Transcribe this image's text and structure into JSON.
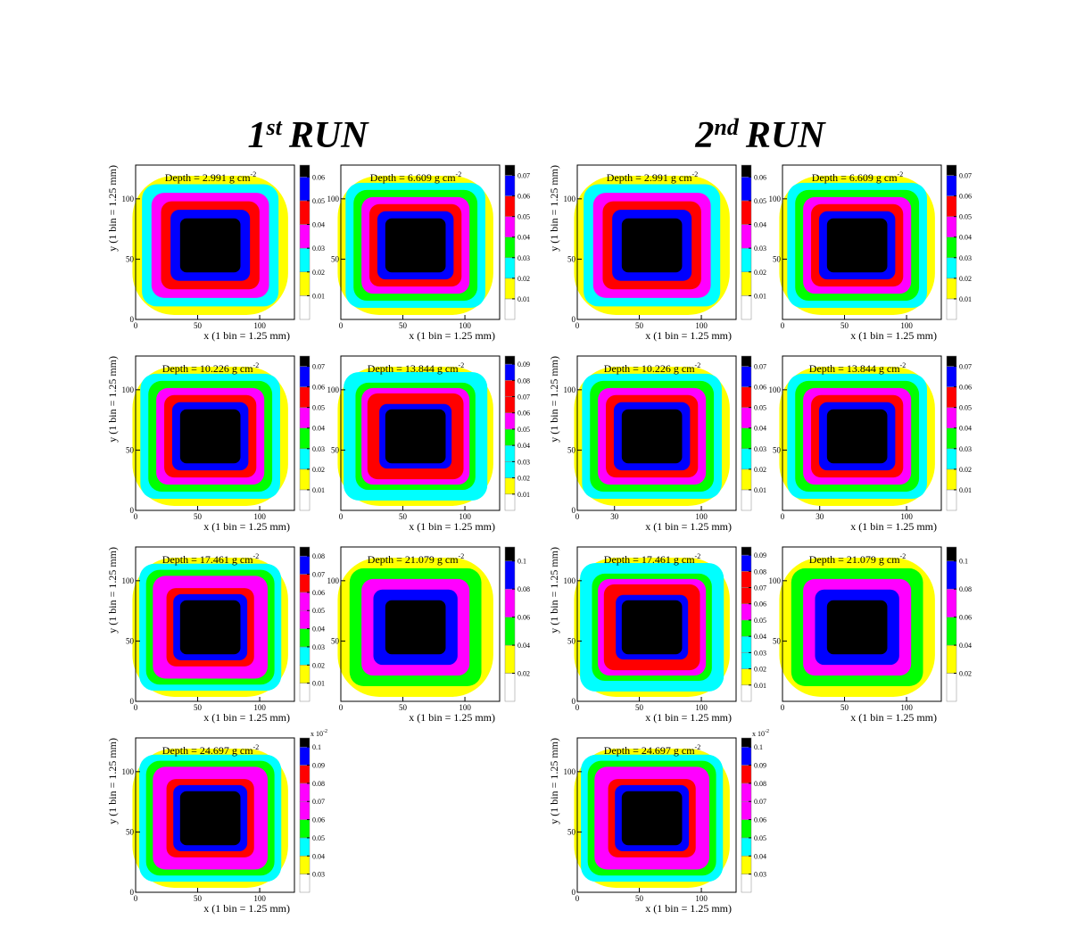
{
  "runs": [
    {
      "number": "1",
      "suffix": "st",
      "word": "RUN"
    },
    {
      "number": "2",
      "suffix": "nd",
      "word": "RUN"
    }
  ],
  "palette": [
    "#ffffff",
    "#ffff00",
    "#00ffff",
    "#00ff00",
    "#ff00ff",
    "#ff0000",
    "#0000ff",
    "#000000"
  ],
  "chart_data": [
    {
      "type": "contour",
      "annotation": "Depth = 2.991 g cm",
      "annotation_sup": "-2",
      "x_label": "x (1 bin = 1.25 mm)",
      "y_label": "y (1 bin = 1.25 mm)",
      "xlim": [
        0,
        128
      ],
      "ylim": [
        0,
        128
      ],
      "xticks": [
        0,
        50,
        100
      ],
      "yticks": [
        0,
        50,
        100
      ],
      "zlim": [
        0,
        0.065
      ],
      "zticks": [
        0.01,
        0.02,
        0.03,
        0.04,
        0.05,
        0.06
      ]
    },
    {
      "type": "contour",
      "annotation": "Depth = 6.609 g cm",
      "annotation_sup": "-2",
      "x_label": "x (1 bin = 1.25 mm)",
      "xlim": [
        0,
        128
      ],
      "ylim": [
        0,
        128
      ],
      "xticks": [
        0,
        50,
        100
      ],
      "yticks": [
        50,
        100
      ],
      "zlim": [
        0,
        0.075
      ],
      "zticks": [
        0.01,
        0.02,
        0.03,
        0.04,
        0.05,
        0.06,
        0.07
      ]
    },
    {
      "type": "contour",
      "annotation": "Depth = 10.226 g cm",
      "annotation_sup": "-2",
      "x_label": "x (1 bin = 1.25 mm)",
      "y_label": "y (1 bin = 1.25 mm)",
      "xlim": [
        0,
        128
      ],
      "ylim": [
        0,
        128
      ],
      "xticks": [
        0,
        50,
        100
      ],
      "yticks": [
        0,
        50,
        100
      ],
      "zlim": [
        0,
        0.075
      ],
      "zticks": [
        0.01,
        0.02,
        0.03,
        0.04,
        0.05,
        0.06,
        0.07
      ]
    },
    {
      "type": "contour",
      "annotation": "Depth = 13.844 g cm",
      "annotation_sup": "-2",
      "x_label": "x (1 bin = 1.25 mm)",
      "xlim": [
        0,
        128
      ],
      "ylim": [
        0,
        128
      ],
      "xticks": [
        0,
        50,
        100
      ],
      "yticks": [
        50,
        100
      ],
      "zlim": [
        0,
        0.095
      ],
      "zticks": [
        0.01,
        0.02,
        0.03,
        0.04,
        0.05,
        0.06,
        0.07,
        0.08,
        0.09
      ]
    },
    {
      "type": "contour",
      "annotation": "Depth = 17.461 g cm",
      "annotation_sup": "-2",
      "x_label": "x (1 bin = 1.25 mm)",
      "y_label": "y (1 bin = 1.25 mm)",
      "xlim": [
        0,
        128
      ],
      "ylim": [
        0,
        128
      ],
      "xticks": [
        0,
        50,
        100
      ],
      "yticks": [
        0,
        50,
        100
      ],
      "zlim": [
        0,
        0.085
      ],
      "zticks": [
        0.01,
        0.02,
        0.03,
        0.04,
        0.05,
        0.06,
        0.07,
        0.08
      ]
    },
    {
      "type": "contour",
      "annotation": "Depth = 21.079 g cm",
      "annotation_sup": "-2",
      "x_label": "x (1 bin = 1.25 mm)",
      "xlim": [
        0,
        128
      ],
      "ylim": [
        0,
        128
      ],
      "xticks": [
        0,
        50,
        100
      ],
      "yticks": [
        50,
        100
      ],
      "zlim": [
        0,
        0.11
      ],
      "zticks": [
        0.02,
        0.04,
        0.06,
        0.08,
        0.1
      ]
    },
    {
      "type": "contour",
      "annotation": "Depth = 24.697 g cm",
      "annotation_sup": "-2",
      "x_label": "x (1 bin = 1.25 mm)",
      "y_label": "y (1 bin = 1.25 mm)",
      "z_scale": "x 10",
      "z_scale_sup": "-2",
      "xlim": [
        0,
        128
      ],
      "ylim": [
        0,
        128
      ],
      "xticks": [
        0,
        50,
        100
      ],
      "yticks": [
        0,
        50,
        100
      ],
      "zlim": [
        0.02,
        0.105
      ],
      "zticks": [
        0.03,
        0.04,
        0.05,
        0.06,
        0.07,
        0.08,
        0.09,
        0.1
      ]
    },
    {
      "type": "contour",
      "annotation": "Depth = 2.991 g cm",
      "annotation_sup": "-2",
      "x_label": "x (1 bin = 1.25 mm)",
      "y_label": "y (1 bin = 1.25 mm)",
      "xlim": [
        0,
        128
      ],
      "ylim": [
        0,
        128
      ],
      "xticks": [
        0,
        50,
        100
      ],
      "yticks": [
        0,
        50,
        100
      ],
      "zlim": [
        0,
        0.065
      ],
      "zticks": [
        0.01,
        0.02,
        0.03,
        0.04,
        0.05,
        0.06
      ]
    },
    {
      "type": "contour",
      "annotation": "Depth = 6.609 g cm",
      "annotation_sup": "-2",
      "x_label": "x (1 bin = 1.25 mm)",
      "xlim": [
        0,
        128
      ],
      "ylim": [
        0,
        128
      ],
      "xticks": [
        0,
        50,
        100
      ],
      "yticks": [
        50,
        100
      ],
      "zlim": [
        0,
        0.075
      ],
      "zticks": [
        0.01,
        0.02,
        0.03,
        0.04,
        0.05,
        0.06,
        0.07
      ]
    },
    {
      "type": "contour",
      "annotation": "Depth = 10.226 g cm",
      "annotation_sup": "-2",
      "x_label": "x (1 bin = 1.25 mm)",
      "y_label": "y (1 bin = 1.25 mm)",
      "xlim": [
        0,
        128
      ],
      "ylim": [
        0,
        128
      ],
      "xticks": [
        0,
        30,
        100
      ],
      "yticks": [
        0,
        50,
        100
      ],
      "zlim": [
        0,
        0.075
      ],
      "zticks": [
        0.01,
        0.02,
        0.03,
        0.04,
        0.05,
        0.06,
        0.07
      ]
    },
    {
      "type": "contour",
      "annotation": "Depth = 13.844 g cm",
      "annotation_sup": "-2",
      "x_label": "x (1 bin = 1.25 mm)",
      "xlim": [
        0,
        128
      ],
      "ylim": [
        0,
        128
      ],
      "xticks": [
        0,
        30,
        100
      ],
      "yticks": [
        50,
        100
      ],
      "zlim": [
        0,
        0.075
      ],
      "zticks": [
        0.01,
        0.02,
        0.03,
        0.04,
        0.05,
        0.06,
        0.07
      ]
    },
    {
      "type": "contour",
      "annotation": "Depth = 17.461 g cm",
      "annotation_sup": "-2",
      "x_label": "x (1 bin = 1.25 mm)",
      "y_label": "y (1 bin = 1.25 mm)",
      "xlim": [
        0,
        128
      ],
      "ylim": [
        0,
        128
      ],
      "xticks": [
        0,
        50,
        100
      ],
      "yticks": [
        0,
        50,
        100
      ],
      "zlim": [
        0,
        0.095
      ],
      "zticks": [
        0.01,
        0.02,
        0.03,
        0.04,
        0.05,
        0.06,
        0.07,
        0.08,
        0.09
      ]
    },
    {
      "type": "contour",
      "annotation": "Depth = 21.079 g cm",
      "annotation_sup": "-2",
      "x_label": "x (1 bin = 1.25 mm)",
      "xlim": [
        0,
        128
      ],
      "ylim": [
        0,
        128
      ],
      "xticks": [
        0,
        50,
        100
      ],
      "yticks": [
        50,
        100
      ],
      "zlim": [
        0,
        0.11
      ],
      "zticks": [
        0.02,
        0.04,
        0.06,
        0.08,
        0.1
      ]
    },
    {
      "type": "contour",
      "annotation": "Depth = 24.697 g cm",
      "annotation_sup": "-2",
      "x_label": "x (1 bin = 1.25 mm)",
      "y_label": "y (1 bin = 1.25 mm)",
      "z_scale": "x 10",
      "z_scale_sup": "-2",
      "xlim": [
        0,
        128
      ],
      "ylim": [
        0,
        128
      ],
      "xticks": [
        0,
        50,
        100
      ],
      "yticks": [
        0,
        50,
        100
      ],
      "zlim": [
        0.02,
        0.105
      ],
      "zticks": [
        0.03,
        0.04,
        0.05,
        0.06,
        0.07,
        0.08,
        0.09,
        0.1
      ]
    }
  ]
}
